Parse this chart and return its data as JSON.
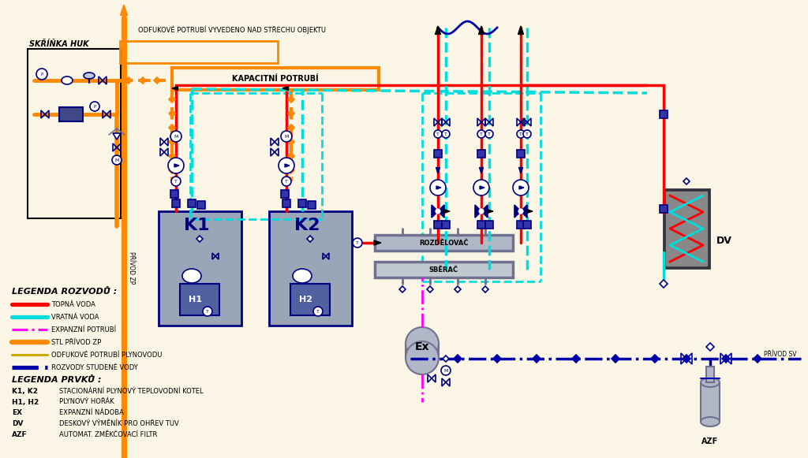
{
  "bg_color": "#FAF5E4",
  "fig_width": 10.24,
  "fig_height": 5.81,
  "legend_rozovdu_title": "LEGENDA ROZVODŮ :",
  "legend_rozovdu_items": [
    {
      "label": "TOPNÁ VODA",
      "color": "#FF0000",
      "style": "solid",
      "lw": 2.5
    },
    {
      "label": "VRATNÁ VODA",
      "color": "#00DDDD",
      "style": "solid",
      "lw": 2.5
    },
    {
      "label": "EXPANZNÍ POTRUBÍ",
      "color": "#FF00FF",
      "style": "dashdot",
      "lw": 1.5
    },
    {
      "label": "STL PŘÍVOD ZP",
      "color": "#FF8800",
      "style": "solid",
      "lw": 3.0
    },
    {
      "label": "ODFUKOVÉ POTRUBÍ PLYNOVODU",
      "color": "#CCAA00",
      "style": "solid",
      "lw": 1.5
    },
    {
      "label": "ROZVODY STUDENÉ VODY",
      "color": "#0000AA",
      "style": "dashdot",
      "lw": 2.5
    }
  ],
  "legend_prvku_title": "LEGENDA PRVKŮ :",
  "legend_prvku_items": [
    {
      "key": "K1, K2",
      "desc": "STACIONÁRNÍ PLYNOVÝ TEPLOVODNÍ KOTEL"
    },
    {
      "key": "H1, H2",
      "desc": "PLYNOVÝ HOŘÁK"
    },
    {
      "key": "EX",
      "desc": "EXPANZNÍ NÁDOBA"
    },
    {
      "key": "DV",
      "desc": "DESKOVÝ VÝMĚNÍK PRO OHŘEV TUV"
    },
    {
      "key": "AZF",
      "desc": "AUTOMAT. ZMĚKČOVACÍ FILTR"
    }
  ],
  "skrinka_label": "SKŘÍŇKA HUK",
  "kapacitni_label": "KAPACITNÍ POTRUBÍ",
  "odfouk_label": "ODFUKOVÉ POTRUBÍ VYVEDENO NAD STŘECHU OBJEKTU",
  "rozdelovac_label": "ROZDĚLOVAČ",
  "sberac_label": "SBĚRAČ",
  "privod_zp_label": "PŘÍVOD ZP",
  "privod_sv_label": "PŘÍVOD SV",
  "dv_label": "DV",
  "ex_label": "Ex",
  "azf_label": "AZF",
  "k1_label": "K1",
  "k2_label": "K2",
  "h1_label": "H1",
  "h2_label": "H2",
  "orange": "#FF8800",
  "red": "#FF0000",
  "cyan": "#00DDDD",
  "magenta": "#FF00FF",
  "blue_dark": "#0000AA",
  "navy": "#000080",
  "blue_med": "#3333AA",
  "gold": "#CCAA00",
  "gray_box": "#B0B8C8",
  "gray_dark": "#707090",
  "black": "#000000",
  "white": "#FFFFFF",
  "boiler_gray": "#9AA5B8",
  "dv_dark": "#333340"
}
